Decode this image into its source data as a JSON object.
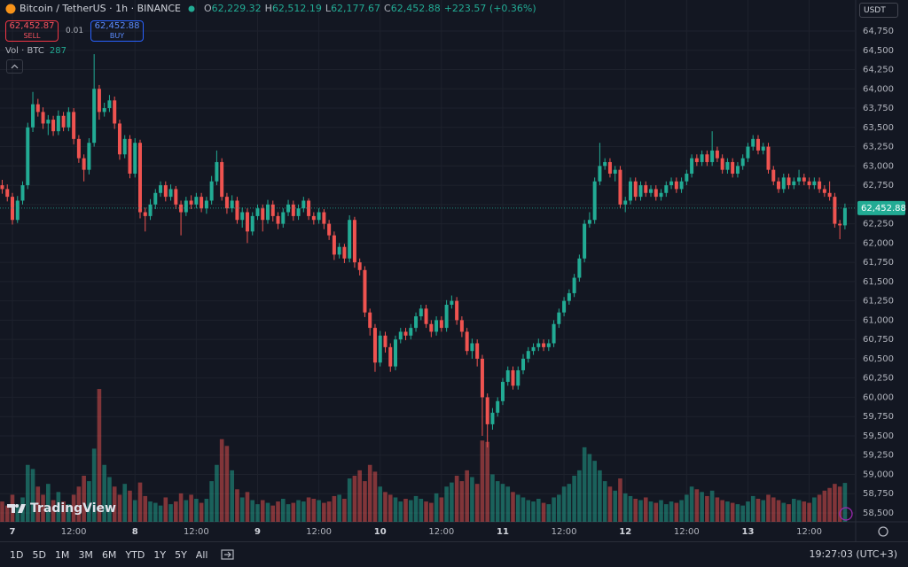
{
  "header": {
    "symbol": "Bitcoin / TetherUS · 1h · BINANCE",
    "ohlc": [
      {
        "label": "O",
        "value": "62,229.32"
      },
      {
        "label": "H",
        "value": "62,512.19"
      },
      {
        "label": "L",
        "value": "62,177.67"
      },
      {
        "label": "C",
        "value": "62,452.88"
      }
    ],
    "change": "+223.57 (+0.36%)"
  },
  "trade": {
    "sell_price": "62,452.87",
    "sell": "SELL",
    "spread": "0.01",
    "buy_price": "62,452.88",
    "buy": "BUY"
  },
  "volume_legend": {
    "label": "Vol · BTC",
    "value": "287"
  },
  "currency": "USDT",
  "logo": "TradingView",
  "ranges": [
    "1D",
    "5D",
    "1M",
    "3M",
    "6M",
    "YTD",
    "1Y",
    "5Y",
    "All"
  ],
  "clock": "19:27:03 (UTC+3)",
  "chart_data": {
    "type": "candlestick",
    "up_color": "#22ab94",
    "down_color": "#ef5350",
    "open": [
      62750,
      62700,
      62600,
      62300,
      62550,
      62750,
      63500,
      63800,
      63700,
      63550,
      63600,
      63450,
      63650,
      63500,
      63700,
      63350,
      63100,
      62950,
      63300,
      64000,
      63700,
      63750,
      63850,
      63550,
      63150,
      63350,
      62900,
      63300,
      62400,
      62350,
      62500,
      62650,
      62750,
      62600,
      62700,
      62500,
      62400,
      62550,
      62500,
      62600,
      62450,
      62550,
      62800,
      63050,
      62600,
      62450,
      62550,
      62300,
      62400,
      62150,
      62350,
      62450,
      62300,
      62500,
      62350,
      62250,
      62400,
      62500,
      62350,
      62450,
      62550,
      62350,
      62300,
      62400,
      62250,
      62100,
      61850,
      61950,
      61800,
      62300,
      61750,
      61650,
      61100,
      60900,
      60450,
      60800,
      60650,
      60400,
      60750,
      60850,
      60800,
      60900,
      61050,
      61150,
      60950,
      60850,
      61000,
      60900,
      61200,
      61250,
      61000,
      60850,
      60600,
      60700,
      60500,
      60000,
      59650,
      59800,
      59950,
      60200,
      60350,
      60150,
      60350,
      60500,
      60600,
      60650,
      60700,
      60650,
      60700,
      60950,
      61100,
      61250,
      61350,
      61550,
      61800,
      62250,
      62300,
      62800,
      63000,
      63050,
      62900,
      62950,
      62500,
      62550,
      62800,
      62600,
      62750,
      62650,
      62700,
      62600,
      62650,
      62750,
      62800,
      62700,
      62800,
      62900,
      63100,
      63050,
      63150,
      63050,
      63200,
      63100,
      62950,
      63050,
      62900,
      63000,
      63100,
      63250,
      63350,
      63200,
      63250,
      62950,
      62800,
      62700,
      62850,
      62750,
      62800,
      62850,
      62800,
      62750,
      62800,
      62700,
      62650,
      62600,
      62250,
      62229.32
    ],
    "high": [
      62820,
      62760,
      62650,
      62610,
      62800,
      63560,
      63960,
      63870,
      63760,
      63660,
      63650,
      63720,
      63700,
      63760,
      63750,
      63400,
      63150,
      63360,
      64450,
      64050,
      63820,
      63920,
      63900,
      63600,
      63400,
      63400,
      63360,
      63340,
      62460,
      62570,
      62700,
      62800,
      62800,
      62760,
      62740,
      62550,
      62600,
      62620,
      62650,
      62650,
      62600,
      62870,
      63200,
      63100,
      62650,
      62620,
      62600,
      62460,
      62450,
      62400,
      62500,
      62500,
      62560,
      62550,
      62400,
      62450,
      62560,
      62550,
      62500,
      62600,
      62580,
      62400,
      62450,
      62440,
      62300,
      62150,
      62000,
      61990,
      62360,
      62340,
      61800,
      61700,
      61150,
      60950,
      60860,
      60850,
      60700,
      60800,
      60900,
      60900,
      60950,
      61100,
      61200,
      61200,
      61000,
      61050,
      61050,
      61260,
      61320,
      61300,
      61050,
      60900,
      60760,
      60750,
      60550,
      60050,
      59860,
      60000,
      60250,
      60400,
      60400,
      60400,
      60560,
      60650,
      60700,
      60760,
      60750,
      60750,
      61000,
      61150,
      61300,
      61400,
      61600,
      61850,
      62300,
      62400,
      62850,
      63300,
      63100,
      63100,
      63000,
      63000,
      62600,
      62850,
      62850,
      62800,
      62800,
      62750,
      62750,
      62700,
      62800,
      62850,
      62850,
      62850,
      62950,
      63150,
      63150,
      63200,
      63200,
      63450,
      63250,
      63150,
      63100,
      63100,
      63050,
      63150,
      63300,
      63400,
      63400,
      63300,
      63300,
      63000,
      62850,
      62900,
      62900,
      62850,
      62950,
      62900,
      62850,
      62850,
      62850,
      62750,
      62800,
      62650,
      62300,
      62512.19
    ],
    "low": [
      62640,
      62540,
      62240,
      62260,
      62500,
      62700,
      63440,
      63640,
      63480,
      63400,
      63390,
      63400,
      63450,
      63450,
      63280,
      63040,
      62800,
      62890,
      63250,
      63600,
      63640,
      63700,
      63480,
      63080,
      63100,
      62840,
      62850,
      62320,
      62150,
      62300,
      62440,
      62600,
      62540,
      62550,
      62440,
      62100,
      62350,
      62440,
      62450,
      62400,
      62380,
      62500,
      62750,
      62550,
      62380,
      62400,
      62250,
      62200,
      62000,
      62100,
      62300,
      62150,
      62250,
      62280,
      62180,
      62200,
      62350,
      62290,
      62300,
      62400,
      62300,
      62240,
      62250,
      62180,
      62040,
      61780,
      61800,
      61740,
      61750,
      61680,
      61580,
      61040,
      60800,
      60330,
      60400,
      60580,
      60330,
      60350,
      60700,
      60740,
      60750,
      60850,
      61000,
      60900,
      60780,
      60800,
      60850,
      60850,
      61150,
      60940,
      60780,
      60550,
      60500,
      60400,
      59500,
      59350,
      59580,
      59750,
      59900,
      60150,
      60100,
      60100,
      60300,
      60450,
      60550,
      60600,
      60600,
      60600,
      60650,
      60900,
      61050,
      61200,
      61300,
      61500,
      61750,
      62200,
      62250,
      62750,
      62950,
      62850,
      62800,
      62450,
      62400,
      62500,
      62550,
      62550,
      62600,
      62600,
      62550,
      62550,
      62600,
      62700,
      62650,
      62650,
      62750,
      62850,
      63000,
      63000,
      63000,
      63000,
      63050,
      62900,
      62900,
      62850,
      62850,
      62950,
      63050,
      63200,
      63150,
      63150,
      62900,
      62750,
      62650,
      62650,
      62700,
      62700,
      62750,
      62750,
      62700,
      62700,
      62650,
      62600,
      62550,
      62200,
      62050,
      62177.67
    ],
    "close": [
      62700,
      62600,
      62300,
      62550,
      62750,
      63500,
      63800,
      63700,
      63550,
      63600,
      63450,
      63650,
      63500,
      63700,
      63350,
      63100,
      62950,
      63300,
      64000,
      63700,
      63750,
      63850,
      63550,
      63150,
      63350,
      62900,
      63300,
      62400,
      62350,
      62500,
      62650,
      62750,
      62600,
      62700,
      62500,
      62400,
      62550,
      62500,
      62600,
      62450,
      62550,
      62800,
      63050,
      62600,
      62450,
      62550,
      62300,
      62400,
      62150,
      62350,
      62450,
      62300,
      62500,
      62350,
      62250,
      62400,
      62500,
      62350,
      62450,
      62550,
      62350,
      62300,
      62400,
      62250,
      62100,
      61850,
      61950,
      61800,
      62300,
      61750,
      61650,
      61100,
      60900,
      60450,
      60800,
      60650,
      60400,
      60750,
      60850,
      60800,
      60900,
      61050,
      61150,
      60950,
      60850,
      61000,
      60900,
      61200,
      61250,
      61000,
      60850,
      60600,
      60700,
      60500,
      60000,
      59650,
      59800,
      59950,
      60200,
      60350,
      60150,
      60350,
      60500,
      60600,
      60650,
      60700,
      60650,
      60700,
      60950,
      61100,
      61250,
      61350,
      61550,
      61800,
      62250,
      62300,
      62800,
      63000,
      63050,
      62900,
      62950,
      62500,
      62550,
      62800,
      62600,
      62750,
      62650,
      62700,
      62600,
      62650,
      62750,
      62800,
      62700,
      62800,
      62900,
      63100,
      63050,
      63150,
      63050,
      63200,
      63100,
      62950,
      63050,
      62900,
      63000,
      63100,
      63250,
      63350,
      63200,
      63250,
      62950,
      62800,
      62700,
      62850,
      62750,
      62800,
      62850,
      62800,
      62750,
      62800,
      62700,
      62650,
      62600,
      62250,
      62229.32,
      62452.88
    ],
    "volume": [
      150,
      120,
      200,
      130,
      180,
      420,
      390,
      260,
      200,
      280,
      160,
      220,
      150,
      130,
      200,
      260,
      340,
      300,
      540,
      980,
      420,
      330,
      260,
      200,
      280,
      230,
      160,
      290,
      190,
      150,
      140,
      120,
      180,
      130,
      150,
      210,
      160,
      200,
      170,
      140,
      170,
      300,
      420,
      610,
      560,
      380,
      240,
      180,
      220,
      160,
      130,
      160,
      140,
      120,
      150,
      170,
      130,
      140,
      160,
      150,
      180,
      170,
      160,
      140,
      150,
      190,
      200,
      170,
      320,
      340,
      380,
      300,
      420,
      370,
      260,
      220,
      200,
      180,
      150,
      170,
      160,
      190,
      170,
      150,
      140,
      210,
      180,
      260,
      290,
      340,
      300,
      380,
      330,
      280,
      600,
      590,
      350,
      300,
      280,
      260,
      220,
      200,
      180,
      160,
      150,
      170,
      140,
      130,
      180,
      200,
      260,
      280,
      340,
      380,
      550,
      500,
      450,
      380,
      300,
      260,
      230,
      320,
      210,
      190,
      170,
      160,
      180,
      150,
      140,
      160,
      130,
      150,
      140,
      160,
      200,
      260,
      240,
      220,
      190,
      230,
      180,
      160,
      150,
      140,
      130,
      120,
      150,
      190,
      170,
      160,
      200,
      180,
      160,
      140,
      130,
      170,
      160,
      150,
      140,
      180,
      200,
      230,
      250,
      280,
      260,
      287
    ],
    "xlim": [
      -0.43,
      167.1
    ],
    "xticks": [
      {
        "value": 2,
        "label": "7"
      },
      {
        "value": 14,
        "label": "12:00"
      },
      {
        "value": 26,
        "label": "8"
      },
      {
        "value": 38,
        "label": "12:00"
      },
      {
        "value": 50,
        "label": "9"
      },
      {
        "value": 62,
        "label": "12:00"
      },
      {
        "value": 74,
        "label": "10"
      },
      {
        "value": 86,
        "label": "12:00"
      },
      {
        "value": 98,
        "label": "11"
      },
      {
        "value": 110,
        "label": "12:00"
      },
      {
        "value": 122,
        "label": "12"
      },
      {
        "value": 134,
        "label": "12:00"
      },
      {
        "value": 146,
        "label": "13"
      },
      {
        "value": 158,
        "label": "12:00"
      }
    ],
    "ylim": [
      58385,
      65152
    ],
    "yticks": [
      {
        "value": 58500,
        "label": "58,500"
      },
      {
        "value": 58750,
        "label": "58,750"
      },
      {
        "value": 59000,
        "label": "59,000"
      },
      {
        "value": 59250,
        "label": "59,250"
      },
      {
        "value": 59500,
        "label": "59,500"
      },
      {
        "value": 59750,
        "label": "59,750"
      },
      {
        "value": 60000,
        "label": "60,000"
      },
      {
        "value": 60250,
        "label": "60,250"
      },
      {
        "value": 60500,
        "label": "60,500"
      },
      {
        "value": 60750,
        "label": "60,750"
      },
      {
        "value": 61000,
        "label": "61,000"
      },
      {
        "value": 61250,
        "label": "61,250"
      },
      {
        "value": 61500,
        "label": "61,500"
      },
      {
        "value": 61750,
        "label": "61,750"
      },
      {
        "value": 62000,
        "label": "62,000"
      },
      {
        "value": 62250,
        "label": "62,250"
      },
      {
        "value": 62500,
        "label": "62,500"
      },
      {
        "value": 62750,
        "label": "62,750"
      },
      {
        "value": 63000,
        "label": "63,000"
      },
      {
        "value": 63250,
        "label": "63,250"
      },
      {
        "value": 63500,
        "label": "63,500"
      },
      {
        "value": 63750,
        "label": "63,750"
      },
      {
        "value": 64000,
        "label": "64,000"
      },
      {
        "value": 64250,
        "label": "64,250"
      },
      {
        "value": 64500,
        "label": "64,500"
      },
      {
        "value": 64750,
        "label": "64,750"
      }
    ],
    "y2lim": [
      0,
      3850
    ],
    "last_price": {
      "value": 62452.88,
      "label": "62,452.88"
    },
    "grid": true
  }
}
